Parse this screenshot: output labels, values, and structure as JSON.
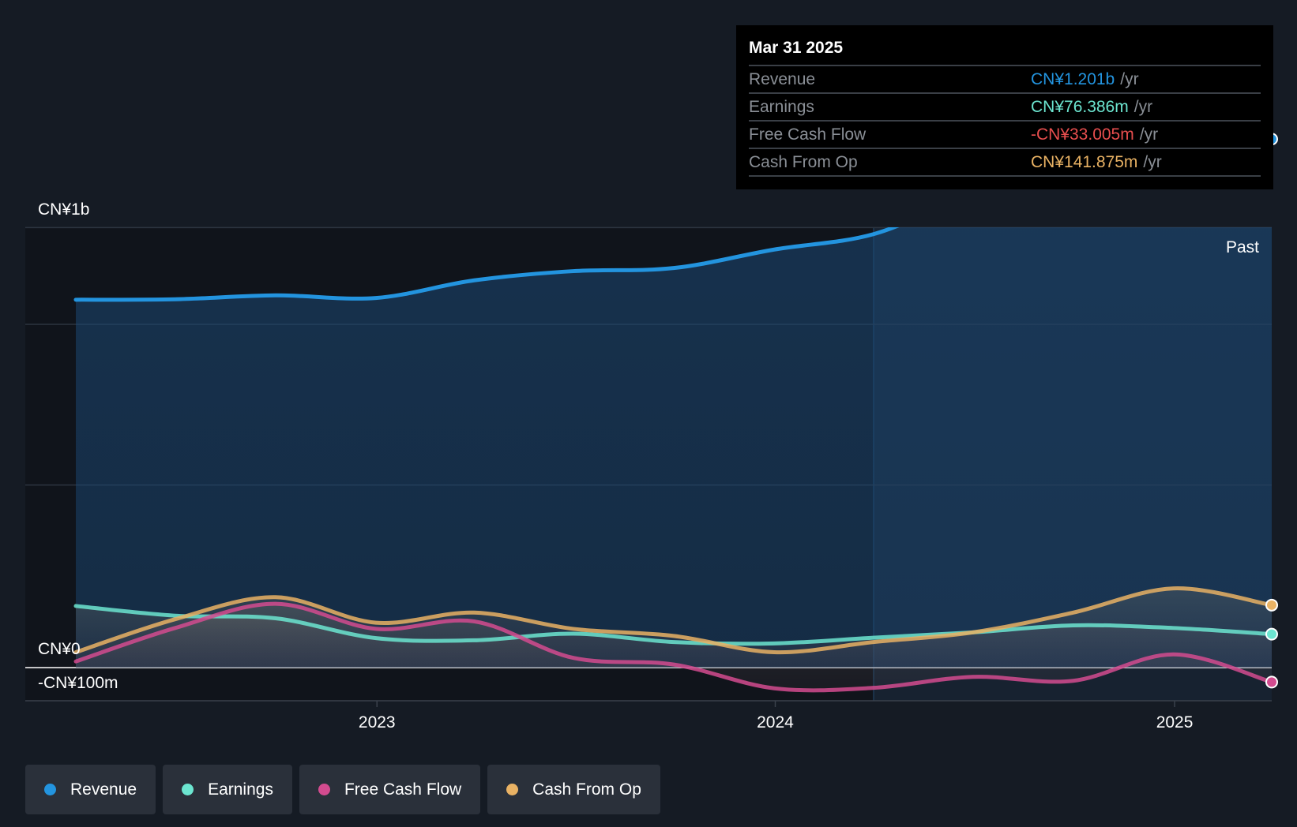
{
  "tooltip": {
    "date": "Mar 31 2025",
    "rows": [
      {
        "label": "Revenue",
        "value": "CN¥1.201b",
        "unit": "/yr",
        "color": "#2394df"
      },
      {
        "label": "Earnings",
        "value": "CN¥76.386m",
        "unit": "/yr",
        "color": "#6ce5d0"
      },
      {
        "label": "Free Cash Flow",
        "value": "-CN¥33.005m",
        "unit": "/yr",
        "color": "#e84e4e"
      },
      {
        "label": "Cash From Op",
        "value": "CN¥141.875m",
        "unit": "/yr",
        "color": "#e9b264"
      }
    ]
  },
  "legend": [
    {
      "label": "Revenue",
      "color": "#2394df"
    },
    {
      "label": "Earnings",
      "color": "#6ce5d0"
    },
    {
      "label": "Free Cash Flow",
      "color": "#d34b8f"
    },
    {
      "label": "Cash From Op",
      "color": "#e9b264"
    }
  ],
  "chart_data": {
    "type": "line",
    "y_tick_labels": {
      "top": "CN¥1b",
      "zero": "CN¥0",
      "bottom": "-CN¥100m"
    },
    "ylim": [
      -100,
      1300
    ],
    "xlim": [
      "2022-03-31",
      "2025-03-31"
    ],
    "x_ticks": [
      "2023",
      "2024",
      "2025"
    ],
    "past_label": "Past",
    "series": [
      {
        "name": "Revenue",
        "color": "#2394df",
        "points": [
          [
            "2022-03-31",
            836
          ],
          [
            "2022-06-30",
            837
          ],
          [
            "2022-09-30",
            846
          ],
          [
            "2022-12-31",
            840
          ],
          [
            "2023-03-31",
            880
          ],
          [
            "2023-06-30",
            901
          ],
          [
            "2023-09-30",
            908
          ],
          [
            "2023-12-31",
            950
          ],
          [
            "2024-03-31",
            985
          ],
          [
            "2024-06-30",
            1075
          ],
          [
            "2024-09-30",
            1130
          ],
          [
            "2024-12-31",
            1160
          ],
          [
            "2025-03-31",
            1201
          ]
        ]
      },
      {
        "name": "Earnings",
        "color": "#6ce5d0",
        "points": [
          [
            "2022-03-31",
            140
          ],
          [
            "2022-06-30",
            118
          ],
          [
            "2022-09-30",
            112
          ],
          [
            "2022-12-31",
            67
          ],
          [
            "2023-03-31",
            62
          ],
          [
            "2023-06-30",
            77
          ],
          [
            "2023-09-30",
            58
          ],
          [
            "2023-12-31",
            55
          ],
          [
            "2024-03-31",
            68
          ],
          [
            "2024-06-30",
            80
          ],
          [
            "2024-09-30",
            96
          ],
          [
            "2024-12-31",
            90
          ],
          [
            "2025-03-31",
            76
          ]
        ]
      },
      {
        "name": "Free Cash Flow",
        "color": "#d34b8f",
        "points": [
          [
            "2022-03-31",
            14
          ],
          [
            "2022-06-30",
            90
          ],
          [
            "2022-09-30",
            145
          ],
          [
            "2022-12-31",
            88
          ],
          [
            "2023-03-31",
            105
          ],
          [
            "2023-06-30",
            22
          ],
          [
            "2023-09-30",
            7
          ],
          [
            "2023-12-31",
            -47
          ],
          [
            "2024-03-31",
            -46
          ],
          [
            "2024-06-30",
            -21
          ],
          [
            "2024-09-30",
            -30
          ],
          [
            "2024-12-31",
            30
          ],
          [
            "2025-03-31",
            -33
          ]
        ]
      },
      {
        "name": "Cash From Op",
        "color": "#e9b264",
        "points": [
          [
            "2022-03-31",
            35
          ],
          [
            "2022-06-30",
            110
          ],
          [
            "2022-09-30",
            160
          ],
          [
            "2022-12-31",
            102
          ],
          [
            "2023-03-31",
            125
          ],
          [
            "2023-06-30",
            88
          ],
          [
            "2023-09-30",
            72
          ],
          [
            "2023-12-31",
            35
          ],
          [
            "2024-03-31",
            58
          ],
          [
            "2024-06-30",
            80
          ],
          [
            "2024-09-30",
            125
          ],
          [
            "2024-12-31",
            180
          ],
          [
            "2025-03-31",
            142
          ]
        ]
      }
    ]
  }
}
